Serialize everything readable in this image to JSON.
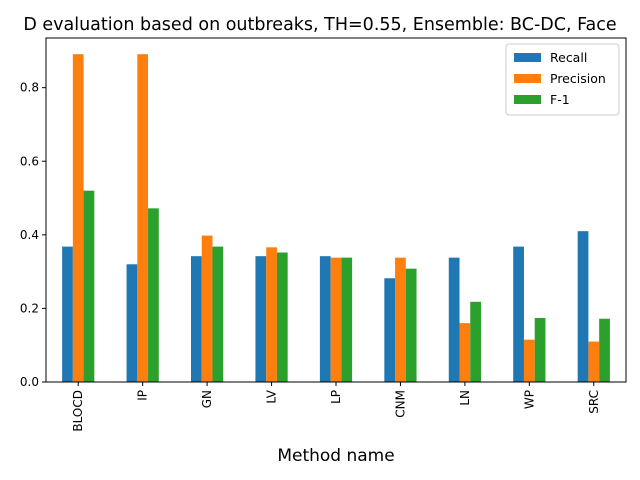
{
  "chart_data": {
    "type": "bar",
    "title": "D evaluation based on outbreaks, TH=0.55, Ensemble: BC-DC, Face",
    "xlabel": "Method name",
    "ylabel": "",
    "categories": [
      "BLOCD",
      "IP",
      "GN",
      "LV",
      "LP",
      "CNM",
      "LN",
      "WP",
      "SRC"
    ],
    "series": [
      {
        "name": "Recall",
        "color": "#1f77b4",
        "values": [
          0.368,
          0.32,
          0.342,
          0.342,
          0.342,
          0.282,
          0.338,
          0.368,
          0.41
        ]
      },
      {
        "name": "Precision",
        "color": "#ff7f0e",
        "values": [
          0.891,
          0.891,
          0.398,
          0.366,
          0.338,
          0.338,
          0.16,
          0.115,
          0.11
        ]
      },
      {
        "name": "F-1",
        "color": "#2ca02c",
        "values": [
          0.52,
          0.472,
          0.368,
          0.352,
          0.338,
          0.308,
          0.218,
          0.174,
          0.172
        ]
      }
    ],
    "ylim": [
      0,
      0.935
    ],
    "yticks": [
      0.0,
      0.2,
      0.4,
      0.6,
      0.8
    ],
    "ytick_labels": [
      "0.0",
      "0.2",
      "0.4",
      "0.6",
      "0.8"
    ],
    "legend_position": "top-right",
    "grid": false
  }
}
